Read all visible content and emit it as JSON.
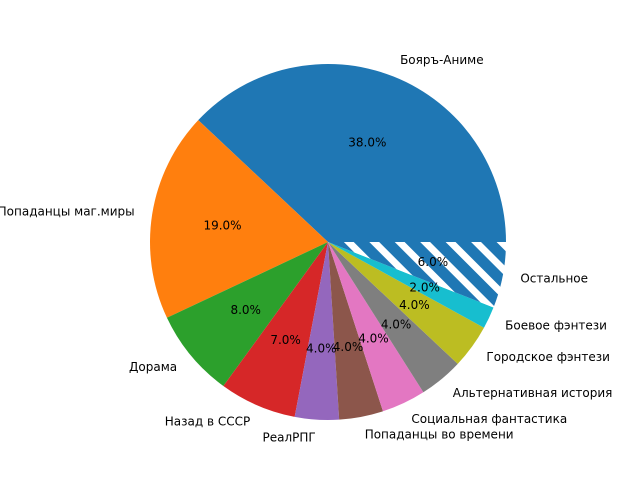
{
  "chart_data": {
    "type": "pie",
    "title": "",
    "start_angle_deg": 0,
    "direction": "counterclockwise",
    "value_format": "percent_1dp",
    "slices": [
      {
        "label": "Бояръ-Аниме",
        "value": 38.0,
        "color": "#1f77b4",
        "hatch": false
      },
      {
        "label": "Попаданцы маг.миры",
        "value": 19.0,
        "color": "#ff7f0e",
        "hatch": false
      },
      {
        "label": "Дорама",
        "value": 8.0,
        "color": "#2ca02c",
        "hatch": false
      },
      {
        "label": "Назад в СССР",
        "value": 7.0,
        "color": "#d62728",
        "hatch": false
      },
      {
        "label": "РеалРПГ",
        "value": 4.0,
        "color": "#9467bd",
        "hatch": false
      },
      {
        "label": "Попаданцы во времени",
        "value": 4.0,
        "color": "#8c564b",
        "hatch": false
      },
      {
        "label": "Социальная фантастика",
        "value": 4.0,
        "color": "#e377c2",
        "hatch": false
      },
      {
        "label": "Альтернативная история",
        "value": 4.0,
        "color": "#7f7f7f",
        "hatch": false
      },
      {
        "label": "Городское фэнтези",
        "value": 4.0,
        "color": "#bcbd22",
        "hatch": false
      },
      {
        "label": "Боевое фэнтези",
        "value": 2.0,
        "color": "#17becf",
        "hatch": false
      },
      {
        "label": "Остальное",
        "value": 6.0,
        "color": "#1f77b4",
        "hatch": true
      }
    ]
  }
}
